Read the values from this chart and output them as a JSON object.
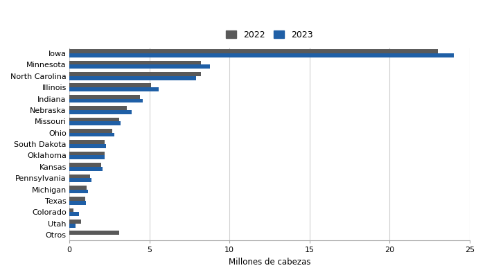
{
  "states": [
    "Iowa",
    "Minnesota",
    "North Carolina",
    "Illinois",
    "Indiana",
    "Nebraska",
    "Missouri",
    "Ohio",
    "South Dakota",
    "Oklahoma",
    "Kansas",
    "Pennsylvania",
    "Michigan",
    "Texas",
    "Colorado",
    "Utah",
    "Otros"
  ],
  "values_2022": [
    23.0,
    8.2,
    8.2,
    5.1,
    4.4,
    3.6,
    3.1,
    2.7,
    2.2,
    2.2,
    2.0,
    1.3,
    1.1,
    1.0,
    0.25,
    0.75,
    3.1
  ],
  "values_2023": [
    24.0,
    8.8,
    7.9,
    5.6,
    4.6,
    3.9,
    3.2,
    2.8,
    2.3,
    2.2,
    2.1,
    1.4,
    1.15,
    1.05,
    0.6,
    0.4,
    0.0
  ],
  "color_2022": "#595959",
  "color_2023": "#1f5fa6",
  "xlabel": "Millones de cabezas",
  "xlim": [
    0,
    25
  ],
  "xticks": [
    0,
    5,
    10,
    15,
    20,
    25
  ],
  "legend_labels": [
    "2022",
    "2023"
  ],
  "background_color": "#ffffff",
  "grid_color": "#d0d0d0",
  "bar_height": 0.35,
  "figsize": [
    7.0,
    4.0
  ],
  "dpi": 100,
  "label_fontsize": 8.0,
  "xlabel_fontsize": 8.5,
  "legend_fontsize": 9
}
